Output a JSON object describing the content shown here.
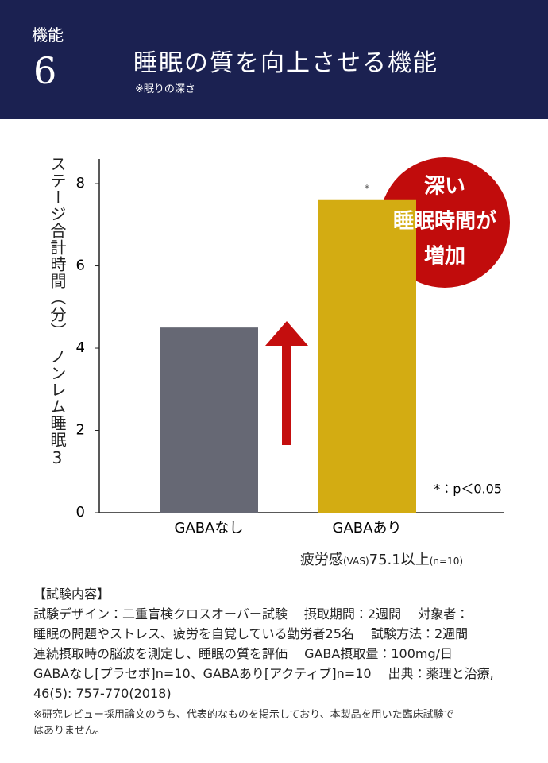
{
  "header": {
    "label": "機能",
    "number": "6",
    "title": "睡眠の質を向上させる機能",
    "subtitle": "※眠りの深さ"
  },
  "chart_data": {
    "type": "bar",
    "y_label": "ステージ合計時間（分）　ノンレム睡眠3",
    "categories": [
      "GABAなし",
      "GABAあり"
    ],
    "values": [
      4.5,
      7.6
    ],
    "colors": [
      "#666874",
      "#d3ac12"
    ],
    "ylim": [
      0,
      8.6
    ],
    "yticks": [
      0,
      2,
      4,
      6,
      8
    ],
    "significance_mark": "*",
    "significance_note": "*：p＜0.05",
    "callout": [
      "深い",
      "睡眠時間が",
      "増加"
    ],
    "condition": [
      "疲労感",
      "(VAS)",
      "75.1以上",
      "(n=10)"
    ]
  },
  "notes": {
    "heading": "【試験内容】",
    "lines": [
      "試験デザイン：二重盲検クロスオーバー試験　 摂取期間：2週間　 対象者：",
      "睡眠の問題やストレス、疲労を自覚している勤労者25名　 試験方法：2週間",
      "連続摂取時の脳波を測定し、睡眠の質を評価　 GABA摂取量：100mg/日",
      "GABAなし[プラセボ]n=10、GABAあり[アクティブ]n=10　 出典：薬理と治療,",
      "46(5): 757-770(2018)"
    ],
    "footnote": [
      "※研究レビュー採用論文のうち、代表的なものを掲示しており、本製品を用いた臨床試験で",
      "はありません。"
    ]
  }
}
